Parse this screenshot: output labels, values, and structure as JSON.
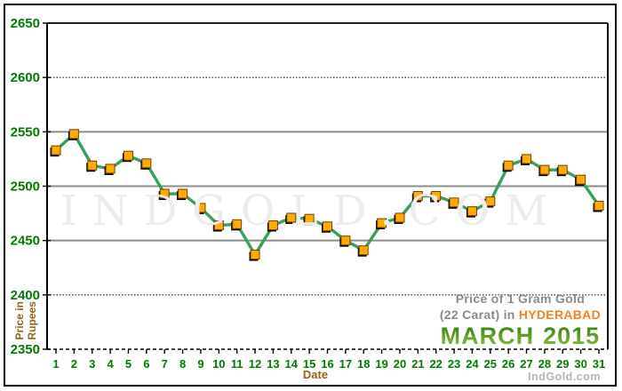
{
  "watermark": {
    "text": "IndGold.com"
  },
  "credit": {
    "text": "IndGold.com"
  },
  "title": {
    "line1": "Price of 1 Gram Gold",
    "line2_prefix": "(22 Carat) in",
    "city": "HYDERABAD",
    "month": "MARCH",
    "year": "2015"
  },
  "axes": {
    "y_label_line1": "Price in",
    "y_label_line2": "Rupees",
    "x_label": "Date"
  },
  "colors": {
    "axis_label_green": "#007c00",
    "axis_title_brown": "#96621c",
    "line_green": "#36a05c",
    "marker_orange": "#ffac00",
    "marker_border": "#7a3c00",
    "marker_shadow": "#000000",
    "grid_gray": "#8c8c8c",
    "dotted_grid_black": "#222222",
    "border_black": "#000000",
    "title_gray": "#8a8a8a",
    "city_orange": "#f58220",
    "month_green": "#3f9c1f",
    "watermark_gray": "#ececec"
  },
  "chart_data": {
    "type": "line",
    "title": "Price of 1 Gram Gold (22 Carat) in HYDERABAD - MARCH 2015",
    "xlabel": "Date",
    "ylabel": "Price in Rupees",
    "x": [
      1,
      2,
      3,
      4,
      5,
      6,
      7,
      8,
      9,
      10,
      11,
      12,
      13,
      14,
      15,
      16,
      17,
      18,
      19,
      20,
      21,
      22,
      23,
      24,
      25,
      26,
      27,
      28,
      29,
      30,
      31
    ],
    "values": [
      2533,
      2548,
      2519,
      2516,
      2528,
      2521,
      2493,
      2493,
      2480,
      2464,
      2465,
      2437,
      2464,
      2471,
      2470,
      2463,
      2450,
      2441,
      2466,
      2471,
      2491,
      2491,
      2485,
      2477,
      2486,
      2519,
      2525,
      2515,
      2515,
      2506,
      2482
    ],
    "ylim": [
      2350,
      2650
    ],
    "yticks": [
      2350,
      2400,
      2450,
      2500,
      2550,
      2600,
      2650
    ],
    "grid": true,
    "legend": false,
    "marker": "square"
  }
}
